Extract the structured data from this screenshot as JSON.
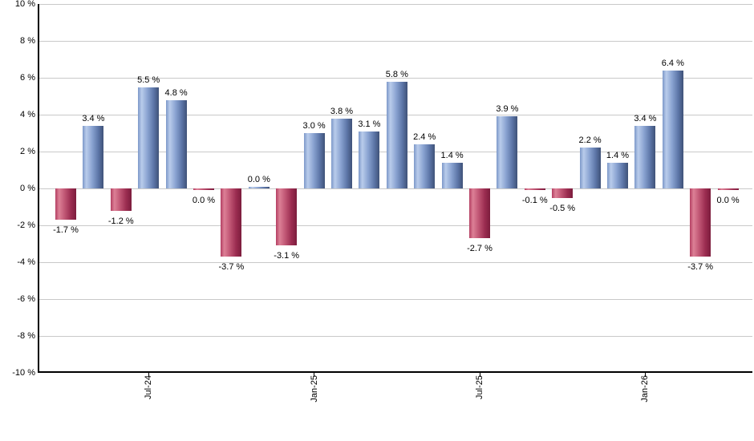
{
  "chart_data": {
    "type": "bar",
    "title": "",
    "xlabel": "",
    "ylabel": "",
    "ylim": [
      -10,
      10
    ],
    "ytick_step": 2,
    "ytick_labels": [
      "10 %",
      "8 %",
      "6 %",
      "4 %",
      "2 %",
      "0 %",
      "-2 %",
      "-4 %",
      "-6 %",
      "-8 %",
      "-10 %"
    ],
    "grid": true,
    "legend": "none",
    "x_axis_ticks": [
      {
        "index": 3,
        "label": "Jul-24"
      },
      {
        "index": 9,
        "label": "Jan-25"
      },
      {
        "index": 15,
        "label": "Jul-25"
      },
      {
        "index": 21,
        "label": "Jan-26"
      }
    ],
    "points": [
      {
        "month": "Apr-24",
        "value": -1.7,
        "label": "-1.7 %",
        "color": "red",
        "label_side": "below"
      },
      {
        "month": "May-24",
        "value": 3.4,
        "label": "3.4 %",
        "color": "blue",
        "label_side": "above"
      },
      {
        "month": "Jun-24",
        "value": -1.2,
        "label": "-1.2 %",
        "color": "red",
        "label_side": "below"
      },
      {
        "month": "Jul-24",
        "value": 5.5,
        "label": "5.5 %",
        "color": "blue",
        "label_side": "above"
      },
      {
        "month": "Aug-24",
        "value": 4.8,
        "label": "4.8 %",
        "color": "blue",
        "label_side": "above"
      },
      {
        "month": "Sep-24",
        "value": 0.0,
        "label": "0.0 %",
        "color": "red",
        "label_side": "below"
      },
      {
        "month": "Oct-24",
        "value": -3.7,
        "label": "-3.7 %",
        "color": "red",
        "label_side": "below"
      },
      {
        "month": "Nov-24",
        "value": 0.0,
        "label": "0.0 %",
        "color": "blue",
        "label_side": "above"
      },
      {
        "month": "Dec-24",
        "value": -3.1,
        "label": "-3.1 %",
        "color": "red",
        "label_side": "below"
      },
      {
        "month": "Jan-25",
        "value": 3.0,
        "label": "3.0 %",
        "color": "blue",
        "label_side": "above"
      },
      {
        "month": "Feb-25",
        "value": 3.8,
        "label": "3.8 %",
        "color": "blue",
        "label_side": "above"
      },
      {
        "month": "Mar-25",
        "value": 3.1,
        "label": "3.1 %",
        "color": "blue",
        "label_side": "above"
      },
      {
        "month": "Apr-25",
        "value": 5.8,
        "label": "5.8 %",
        "color": "blue",
        "label_side": "above"
      },
      {
        "month": "May-25",
        "value": 2.4,
        "label": "2.4 %",
        "color": "blue",
        "label_side": "above"
      },
      {
        "month": "Jun-25",
        "value": 1.4,
        "label": "1.4 %",
        "color": "blue",
        "label_side": "above"
      },
      {
        "month": "Jul-25",
        "value": -2.7,
        "label": "-2.7 %",
        "color": "red",
        "label_side": "below"
      },
      {
        "month": "Aug-25",
        "value": 3.9,
        "label": "3.9 %",
        "color": "blue",
        "label_side": "above"
      },
      {
        "month": "Sep-25",
        "value": -0.1,
        "label": "-0.1 %",
        "color": "red",
        "label_side": "below"
      },
      {
        "month": "Oct-25",
        "value": -0.5,
        "label": "-0.5 %",
        "color": "red",
        "label_side": "below"
      },
      {
        "month": "Nov-25",
        "value": 2.2,
        "label": "2.2 %",
        "color": "blue",
        "label_side": "above"
      },
      {
        "month": "Dec-25",
        "value": 1.4,
        "label": "1.4 %",
        "color": "blue",
        "label_side": "above"
      },
      {
        "month": "Jan-26",
        "value": 3.4,
        "label": "3.4 %",
        "color": "blue",
        "label_side": "above"
      },
      {
        "month": "Feb-26",
        "value": 6.4,
        "label": "6.4 %",
        "color": "blue",
        "label_side": "above"
      },
      {
        "month": "Mar-26",
        "value": -3.7,
        "label": "-3.7 %",
        "color": "red",
        "label_side": "below"
      },
      {
        "month": "Apr-26",
        "value": 0.0,
        "label": "0.0 %",
        "color": "red",
        "label_side": "below"
      }
    ],
    "colors": {
      "positive_gradient": [
        "#7d98c9",
        "#b9cceb",
        "#8ba4d2",
        "#5d76a8",
        "#3f5278"
      ],
      "negative_gradient": [
        "#b43f63",
        "#dc8096",
        "#c05674",
        "#9a2c50",
        "#7c1d3d"
      ],
      "gridline": "#c9c9c9",
      "axis": "#000000",
      "background": "#ffffff"
    }
  }
}
